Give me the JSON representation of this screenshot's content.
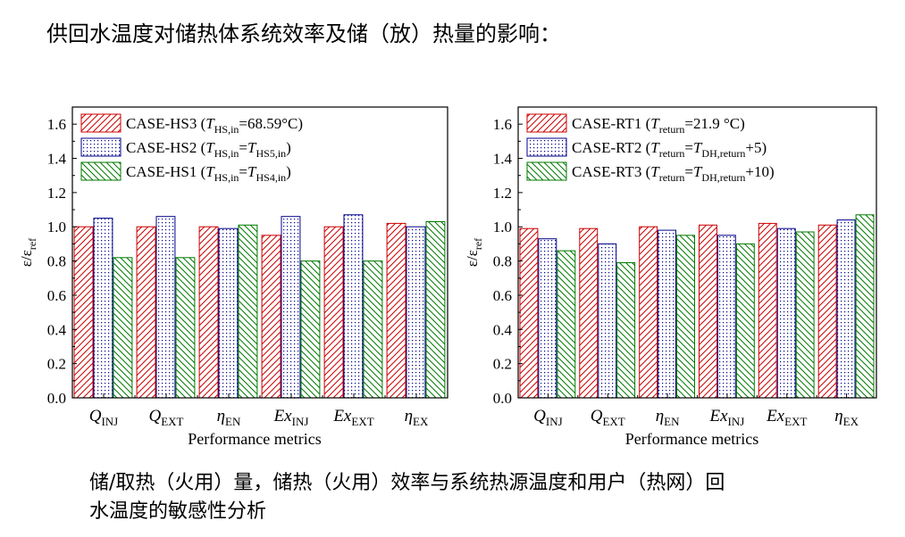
{
  "page": {
    "title": "供回水温度对储热体系统效率及储（放）热量的影响：",
    "caption_line1": "储/取热（火用）量，储热（火用）效率与系统热源温度和用户（热网）回",
    "caption_line2": "水温度的敏感性分析"
  },
  "chart_data": [
    {
      "type": "bar",
      "xlabel": "Performance metrics",
      "ylabel": "ε/ε_ref",
      "ylim": [
        0,
        1.7
      ],
      "yticks": [
        "0.0",
        "0.2",
        "0.4",
        "0.6",
        "0.8",
        "1.0",
        "1.2",
        "1.4",
        "1.6"
      ],
      "categories": [
        {
          "base": "Q",
          "sub": "INJ",
          "italic": true
        },
        {
          "base": "Q",
          "sub": "EXT",
          "italic": true
        },
        {
          "base": "η",
          "sub": "EN",
          "italic": true
        },
        {
          "base": "Ex",
          "sub": "INJ",
          "italic": true
        },
        {
          "base": "Ex",
          "sub": "EXT",
          "italic": true
        },
        {
          "base": "η",
          "sub": "EX",
          "italic": true
        }
      ],
      "legend_position": "top-left",
      "series": [
        {
          "name": "CASE-HS3",
          "legend_parts": [
            [
              "t",
              "CASE-HS3 ("
            ],
            [
              "i",
              "T"
            ],
            [
              "s",
              "HS,in"
            ],
            [
              "t",
              "=68.59°C)"
            ]
          ],
          "color": "#cc0000",
          "pattern": "diag-right",
          "values": [
            1.0,
            1.0,
            1.0,
            0.95,
            1.0,
            1.02
          ]
        },
        {
          "name": "CASE-HS2",
          "legend_parts": [
            [
              "t",
              "CASE-HS2 ("
            ],
            [
              "i",
              "T"
            ],
            [
              "s",
              "HS,in"
            ],
            [
              "t",
              "="
            ],
            [
              "i",
              "T"
            ],
            [
              "s",
              "HS5,in"
            ],
            [
              "t",
              ")"
            ]
          ],
          "color": "#00008b",
          "pattern": "dots",
          "values": [
            1.05,
            1.06,
            0.99,
            1.06,
            1.07,
            1.0
          ]
        },
        {
          "name": "CASE-HS1",
          "legend_parts": [
            [
              "t",
              "CASE-HS1 ("
            ],
            [
              "i",
              "T"
            ],
            [
              "s",
              "HS,in"
            ],
            [
              "t",
              "="
            ],
            [
              "i",
              "T"
            ],
            [
              "s",
              "HS4,in"
            ],
            [
              "t",
              ")"
            ]
          ],
          "color": "#007a00",
          "pattern": "diag-left",
          "values": [
            0.82,
            0.82,
            1.01,
            0.8,
            0.8,
            1.03
          ]
        }
      ]
    },
    {
      "type": "bar",
      "xlabel": "Performance metrics",
      "ylabel": "ε/ε_ref",
      "ylim": [
        0,
        1.7
      ],
      "yticks": [
        "0.0",
        "0.2",
        "0.4",
        "0.6",
        "0.8",
        "1.0",
        "1.2",
        "1.4",
        "1.6"
      ],
      "categories": [
        {
          "base": "Q",
          "sub": "INJ",
          "italic": true
        },
        {
          "base": "Q",
          "sub": "EXT",
          "italic": true
        },
        {
          "base": "η",
          "sub": "EN",
          "italic": true
        },
        {
          "base": "Ex",
          "sub": "INJ",
          "italic": true
        },
        {
          "base": "Ex",
          "sub": "EXT",
          "italic": true
        },
        {
          "base": "η",
          "sub": "EX",
          "italic": true
        }
      ],
      "legend_position": "top-left",
      "series": [
        {
          "name": "CASE-RT1",
          "legend_parts": [
            [
              "t",
              "CASE-RT1 ("
            ],
            [
              "i",
              "T"
            ],
            [
              "s",
              "return"
            ],
            [
              "t",
              "=21.9 °C)"
            ]
          ],
          "color": "#cc0000",
          "pattern": "diag-right",
          "values": [
            0.99,
            0.99,
            1.0,
            1.01,
            1.02,
            1.01
          ]
        },
        {
          "name": "CASE-RT2",
          "legend_parts": [
            [
              "t",
              "CASE-RT2 ("
            ],
            [
              "i",
              "T"
            ],
            [
              "s",
              "return"
            ],
            [
              "t",
              "="
            ],
            [
              "i",
              "T"
            ],
            [
              "s",
              "DH,return"
            ],
            [
              "t",
              "+5)"
            ]
          ],
          "color": "#00008b",
          "pattern": "dots",
          "values": [
            0.93,
            0.9,
            0.98,
            0.95,
            0.99,
            1.04
          ]
        },
        {
          "name": "CASE-RT3",
          "legend_parts": [
            [
              "t",
              "CASE-RT3 ("
            ],
            [
              "i",
              "T"
            ],
            [
              "s",
              "return"
            ],
            [
              "t",
              "="
            ],
            [
              "i",
              "T"
            ],
            [
              "s",
              "DH,return"
            ],
            [
              "t",
              "+10)"
            ]
          ],
          "color": "#007a00",
          "pattern": "diag-left",
          "values": [
            0.86,
            0.79,
            0.95,
            0.9,
            0.97,
            1.07
          ]
        }
      ]
    }
  ]
}
